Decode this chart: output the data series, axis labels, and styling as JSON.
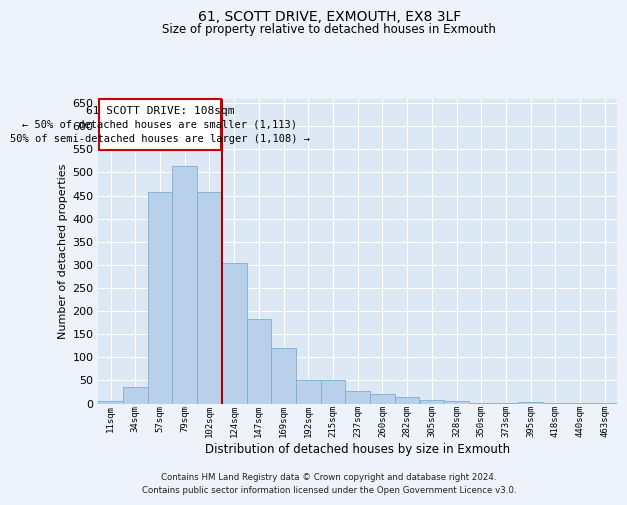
{
  "title1": "61, SCOTT DRIVE, EXMOUTH, EX8 3LF",
  "title2": "Size of property relative to detached houses in Exmouth",
  "xlabel": "Distribution of detached houses by size in Exmouth",
  "ylabel": "Number of detached properties",
  "categories": [
    "11sqm",
    "34sqm",
    "57sqm",
    "79sqm",
    "102sqm",
    "124sqm",
    "147sqm",
    "169sqm",
    "192sqm",
    "215sqm",
    "237sqm",
    "260sqm",
    "282sqm",
    "305sqm",
    "328sqm",
    "350sqm",
    "373sqm",
    "395sqm",
    "418sqm",
    "440sqm",
    "463sqm"
  ],
  "values": [
    5,
    35,
    458,
    515,
    458,
    305,
    182,
    120,
    50,
    50,
    27,
    20,
    13,
    8,
    5,
    2,
    2,
    4,
    2,
    1,
    1
  ],
  "bar_color": "#b8d0ea",
  "bar_edge_color": "#7aafd4",
  "plot_bg_color": "#dde8f5",
  "fig_bg_color": "#edf2fb",
  "grid_color": "#ffffff",
  "redline_color": "#aa0000",
  "redline_x": 4.5,
  "annotation_title": "61 SCOTT DRIVE: 108sqm",
  "annotation_line1": "← 50% of detached houses are smaller (1,113)",
  "annotation_line2": "50% of semi-detached houses are larger (1,108) →",
  "annotation_box_facecolor": "#ffffff",
  "annotation_box_edgecolor": "#cc0000",
  "footer1": "Contains HM Land Registry data © Crown copyright and database right 2024.",
  "footer2": "Contains public sector information licensed under the Open Government Licence v3.0.",
  "ylim": [
    0,
    660
  ],
  "yticks": [
    0,
    50,
    100,
    150,
    200,
    250,
    300,
    350,
    400,
    450,
    500,
    550,
    600,
    650
  ]
}
